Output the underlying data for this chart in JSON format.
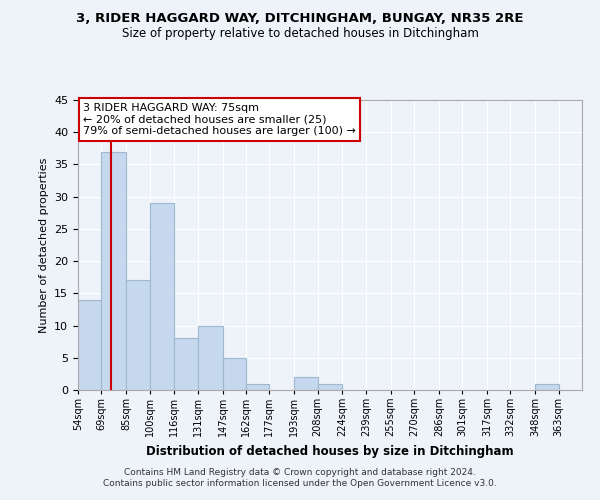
{
  "title": "3, RIDER HAGGARD WAY, DITCHINGHAM, BUNGAY, NR35 2RE",
  "subtitle": "Size of property relative to detached houses in Ditchingham",
  "xlabel": "Distribution of detached houses by size in Ditchingham",
  "ylabel": "Number of detached properties",
  "bin_labels": [
    "54sqm",
    "69sqm",
    "85sqm",
    "100sqm",
    "116sqm",
    "131sqm",
    "147sqm",
    "162sqm",
    "177sqm",
    "193sqm",
    "208sqm",
    "224sqm",
    "239sqm",
    "255sqm",
    "270sqm",
    "286sqm",
    "301sqm",
    "317sqm",
    "332sqm",
    "348sqm",
    "363sqm"
  ],
  "bar_values": [
    14,
    37,
    17,
    29,
    8,
    10,
    5,
    1,
    0,
    2,
    1,
    0,
    0,
    0,
    0,
    0,
    0,
    0,
    0,
    1,
    0
  ],
  "bar_color": "#c5d8ed",
  "bar_edge_color": "#a0b8d0",
  "property_line_x": 75,
  "bin_edges": [
    54,
    69,
    85,
    100,
    116,
    131,
    147,
    162,
    177,
    193,
    208,
    224,
    239,
    255,
    270,
    286,
    301,
    317,
    332,
    348,
    363,
    378
  ],
  "ylim": [
    0,
    45
  ],
  "yticks": [
    0,
    5,
    10,
    15,
    20,
    25,
    30,
    35,
    40,
    45
  ],
  "annotation_title": "3 RIDER HAGGARD WAY: 75sqm",
  "annotation_line1": "← 20% of detached houses are smaller (25)",
  "annotation_line2": "79% of semi-detached houses are larger (100) →",
  "annotation_box_color": "#ffffff",
  "annotation_box_edge": "#cc0000",
  "red_line_color": "#cc0000",
  "footer_line1": "Contains HM Land Registry data © Crown copyright and database right 2024.",
  "footer_line2": "Contains public sector information licensed under the Open Government Licence v3.0.",
  "background_color": "#eef2f9",
  "grid_color": "#ffffff"
}
